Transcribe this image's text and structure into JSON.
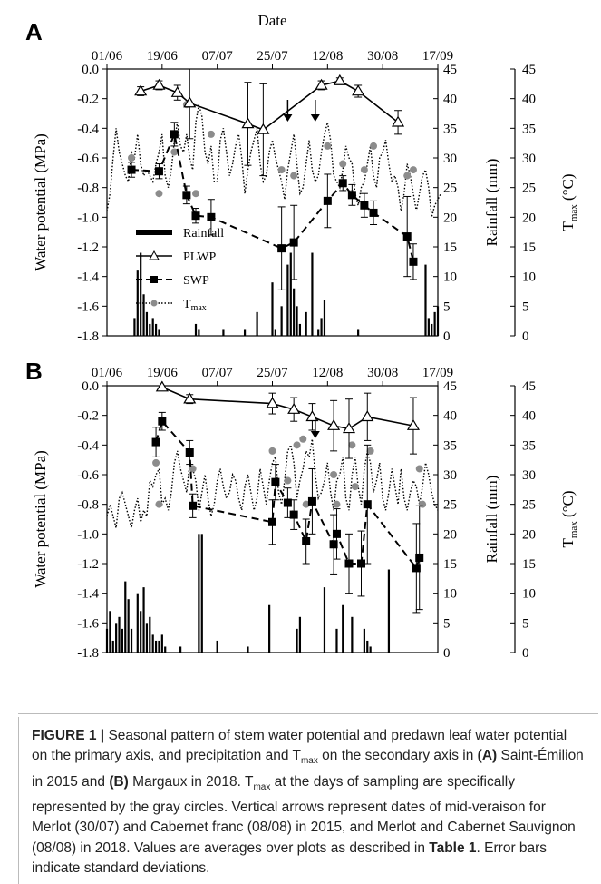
{
  "figure": {
    "panels": [
      {
        "letter": "A",
        "date_axis_title": "Date"
      },
      {
        "letter": "B",
        "date_axis_title": ""
      }
    ],
    "legend": [
      "Rainfall",
      "PLWP",
      "SWP",
      "Tmax"
    ],
    "colors": {
      "lines": "#000000",
      "tmax_points": "#8c8c8c",
      "bars": "#000000"
    }
  },
  "caption": {
    "label": "FIGURE 1 |",
    "segments": [
      {
        "t": " Seasonal pattern of stem water potential and predawn leaf water potential on the primary axis, and precipitation and T"
      },
      {
        "sub": "max"
      },
      {
        "t": " on the secondary axis in "
      },
      {
        "b": "(A)"
      },
      {
        "t": " Saint-Émilion in 2015 and "
      },
      {
        "b": "(B)"
      },
      {
        "t": " Margaux in 2018. T"
      },
      {
        "sub": "max"
      },
      {
        "t": " at the days of sampling are specifically represented by the gray circles. Vertical arrows represent dates of mid-veraison for Merlot (30/07) and Cabernet franc (08/08) in 2015, and Merlot and Cabernet Sauvignon (08/08) in 2018. Values are averages over plots as described in "
      },
      {
        "b": "Table 1"
      },
      {
        "t": ". Error bars indicate standard deviations."
      }
    ]
  },
  "chart_data": [
    {
      "type": "line",
      "panel": "A",
      "title": "",
      "xlabel": "Date",
      "x_ticks": [
        "01/06",
        "19/06",
        "07/07",
        "25/07",
        "12/08",
        "30/08",
        "17/09"
      ],
      "x_range_days_from_0106": [
        0,
        108
      ],
      "ylabel": "Water potential (MPa)",
      "ylim": [
        -1.8,
        0.0
      ],
      "y_ticks": [
        "0.0",
        "-0.2",
        "-0.4",
        "-0.6",
        "-0.8",
        "-1.0",
        "-1.2",
        "-1.4",
        "-1.6",
        "-1.8"
      ],
      "y2label": "Rainfall (mm)",
      "y2lim": [
        0,
        45
      ],
      "y3label": "Tmax (°C)",
      "y3lim": [
        0,
        45
      ],
      "y2_ticks": [
        "0",
        "5",
        "10",
        "15",
        "20",
        "25",
        "30",
        "35",
        "40",
        "45"
      ],
      "legend": [
        "Rainfall",
        "PLWP",
        "SWP",
        "Tmax"
      ],
      "series": [
        {
          "name": "PLWP",
          "style": "solid, open triangles",
          "x": [
            "12/06",
            "18/06",
            "24/06",
            "28/06",
            "17/07",
            "22/07",
            "10/08",
            "16/08",
            "22/08",
            "04/09"
          ],
          "y": [
            -0.15,
            -0.11,
            -0.16,
            -0.23,
            -0.37,
            -0.41,
            -0.11,
            -0.08,
            -0.15,
            -0.36
          ],
          "err": [
            0.03,
            0.03,
            0.05,
            0.24,
            0.28,
            0.31,
            0.03,
            0.02,
            0.04,
            0.08
          ]
        },
        {
          "name": "SWP",
          "style": "dashed, filled squares",
          "x": [
            "09/06",
            "18/06",
            "23/06",
            "27/06",
            "30/06",
            "05/07",
            "28/07",
            "01/08",
            "12/08",
            "17/08",
            "20/08",
            "24/08",
            "27/08",
            "07/09",
            "09/09"
          ],
          "y": [
            -0.68,
            -0.69,
            -0.44,
            -0.85,
            -0.99,
            -1.0,
            -1.21,
            -1.17,
            -0.89,
            -0.77,
            -0.85,
            -0.92,
            -0.97,
            -1.13,
            -1.3
          ],
          "err": [
            0.05,
            0.05,
            0.08,
            0.06,
            0.05,
            0.12,
            0.28,
            0.25,
            0.18,
            0.05,
            0.07,
            0.08,
            0.08,
            0.27,
            0.12
          ]
        },
        {
          "name": "Tmax sampling days",
          "style": "gray circles",
          "x": [
            "09/06",
            "18/06",
            "23/06",
            "27/06",
            "30/06",
            "05/07",
            "28/07",
            "01/08",
            "12/08",
            "17/08",
            "20/08",
            "24/08",
            "27/08",
            "07/09",
            "09/09"
          ],
          "y_degC": [
            30,
            24,
            31,
            39,
            24,
            34,
            28,
            27,
            32,
            29,
            24,
            28,
            32,
            27,
            28
          ]
        },
        {
          "name": "Tmax",
          "style": "dotted line, daily",
          "x_start": "01/06",
          "y_degC": [
            21,
            24,
            30,
            35,
            31,
            29,
            27,
            26,
            31,
            30,
            34,
            29,
            27,
            28,
            27,
            26,
            29,
            31,
            34,
            27,
            25,
            28,
            33,
            36,
            32,
            31,
            34,
            30,
            28,
            36,
            39,
            37,
            31,
            29,
            32,
            26,
            26,
            33,
            35,
            31,
            27,
            29,
            32,
            34,
            30,
            24,
            28,
            31,
            33,
            35,
            29,
            26,
            27,
            31,
            33,
            30,
            28,
            26,
            23,
            28,
            31,
            34,
            29,
            24,
            25,
            29,
            33,
            28,
            26,
            27,
            31,
            34,
            36,
            33,
            27,
            26,
            25,
            28,
            32,
            30,
            29,
            24,
            22,
            25,
            26,
            29,
            32,
            27,
            25,
            30,
            31,
            33,
            29,
            26,
            27,
            25,
            21,
            24,
            29,
            27,
            24,
            21,
            24,
            27,
            28,
            25,
            20,
            22,
            23,
            24
          ]
        },
        {
          "name": "Rainfall",
          "style": "bars, mm",
          "x_days_from_0106": [
            9,
            10,
            11,
            12,
            13,
            14,
            15,
            16,
            17,
            29,
            30,
            38,
            45,
            49,
            54,
            55,
            57,
            59,
            60,
            61,
            62,
            63,
            65,
            67,
            69,
            70,
            71,
            82,
            104,
            105,
            106,
            107,
            108
          ],
          "y_mm": [
            3,
            11,
            14,
            7,
            4,
            2,
            3,
            2,
            1,
            2,
            1,
            1,
            1,
            4,
            9,
            1,
            5,
            12,
            14,
            8,
            5,
            2,
            4,
            14,
            1,
            3,
            6,
            1,
            12,
            3,
            2,
            4,
            5
          ]
        }
      ],
      "annotations": [
        {
          "type": "arrow",
          "x": "30/07"
        },
        {
          "type": "arrow",
          "x": "08/08"
        }
      ]
    },
    {
      "type": "line",
      "panel": "B",
      "title": "",
      "xlabel": "",
      "x_ticks": [
        "01/06",
        "19/06",
        "07/07",
        "25/07",
        "12/08",
        "30/08",
        "17/09"
      ],
      "x_range_days_from_0106": [
        0,
        108
      ],
      "ylabel": "Water potential (MPa)",
      "ylim": [
        -1.8,
        0.0
      ],
      "y_ticks": [
        "0.0",
        "-0.2",
        "-0.4",
        "-0.6",
        "-0.8",
        "-1.0",
        "-1.2",
        "-1.4",
        "-1.6",
        "-1.8"
      ],
      "y2label": "Rainfall (mm)",
      "y2lim": [
        0,
        45
      ],
      "y3label": "Tmax (°C)",
      "y3lim": [
        0,
        45
      ],
      "y2_ticks": [
        "0",
        "5",
        "10",
        "15",
        "20",
        "25",
        "30",
        "35",
        "40",
        "45"
      ],
      "series": [
        {
          "name": "PLWP",
          "style": "solid, open triangles",
          "x": [
            "19/06",
            "28/06",
            "25/07",
            "01/08",
            "07/08",
            "14/08",
            "19/08",
            "25/08",
            "09/09"
          ],
          "y": [
            -0.01,
            -0.09,
            -0.12,
            -0.16,
            -0.21,
            -0.27,
            -0.29,
            -0.21,
            -0.27
          ],
          "err": [
            0.01,
            0.03,
            0.07,
            0.08,
            0.09,
            0.17,
            0.2,
            0.16,
            0.19
          ]
        },
        {
          "name": "SWP",
          "style": "dashed, filled squares",
          "x": [
            "17/06",
            "19/06",
            "28/06",
            "29/06",
            "25/07",
            "26/07",
            "30/07",
            "01/08",
            "05/08",
            "07/08",
            "14/08",
            "15/08",
            "19/08",
            "23/08",
            "25/08",
            "10/09",
            "11/09"
          ],
          "y": [
            -0.38,
            -0.24,
            -0.45,
            -0.81,
            -0.92,
            -0.65,
            -0.79,
            -0.87,
            -1.05,
            -0.78,
            -1.07,
            -1.0,
            -1.2,
            -1.2,
            -0.8,
            -1.23,
            -1.16
          ],
          "err": [
            0.1,
            0.06,
            0.08,
            0.08,
            0.15,
            0.12,
            0.1,
            0.1,
            0.15,
            0.22,
            0.2,
            0.17,
            0.2,
            0.22,
            0.4,
            0.3,
            0.35
          ]
        },
        {
          "name": "Tmax sampling days",
          "style": "gray circles",
          "x": [
            "17/06",
            "18/06",
            "29/06",
            "25/07",
            "30/07",
            "02/08",
            "04/08",
            "05/08",
            "14/08",
            "15/08",
            "20/08",
            "21/08",
            "25/08",
            "26/08",
            "11/09",
            "12/09"
          ],
          "y_degC": [
            32,
            25,
            31,
            34,
            29,
            35,
            36,
            25,
            30,
            25,
            35,
            28,
            25,
            34,
            31,
            25
          ]
        },
        {
          "name": "Tmax",
          "style": "dotted line, daily",
          "x_start": "01/06",
          "y_degC": [
            23,
            25,
            23,
            21,
            26,
            27,
            25,
            23,
            21,
            24,
            26,
            22,
            24,
            23,
            29,
            28,
            30,
            31,
            25,
            26,
            24,
            27,
            32,
            34,
            31,
            29,
            27,
            32,
            31,
            29,
            24,
            27,
            30,
            26,
            23,
            25,
            29,
            31,
            28,
            26,
            27,
            30,
            29,
            26,
            24,
            28,
            30,
            27,
            24,
            26,
            31,
            28,
            25,
            29,
            32,
            33,
            27,
            25,
            29,
            34,
            35,
            32,
            26,
            29,
            31,
            34,
            33,
            36,
            30,
            26,
            27,
            29,
            32,
            27,
            24,
            29,
            30,
            33,
            26,
            24,
            30,
            33,
            28,
            25,
            31,
            34,
            32,
            27,
            29,
            32,
            26,
            24,
            27,
            31,
            28,
            25,
            31,
            26,
            24,
            27,
            29,
            28,
            25,
            28,
            32,
            30,
            27,
            25,
            24
          ]
        },
        {
          "name": "Rainfall",
          "style": "bars, mm",
          "x_days_from_0106": [
            0,
            1,
            2,
            3,
            4,
            5,
            6,
            7,
            8,
            10,
            11,
            12,
            13,
            14,
            15,
            16,
            17,
            18,
            19,
            24,
            30,
            31,
            36,
            46,
            53,
            62,
            63,
            71,
            75,
            77,
            80,
            84,
            85,
            86,
            92
          ],
          "y_mm": [
            4,
            7,
            2,
            5,
            6,
            4,
            12,
            9,
            4,
            10,
            7,
            11,
            5,
            6,
            3,
            2,
            2,
            3,
            1,
            1,
            20,
            20,
            2,
            1,
            8,
            4,
            6,
            11,
            4,
            8,
            6,
            4,
            2,
            1,
            14
          ]
        }
      ],
      "annotations": [
        {
          "type": "arrow",
          "x": "08/08"
        }
      ]
    }
  ]
}
